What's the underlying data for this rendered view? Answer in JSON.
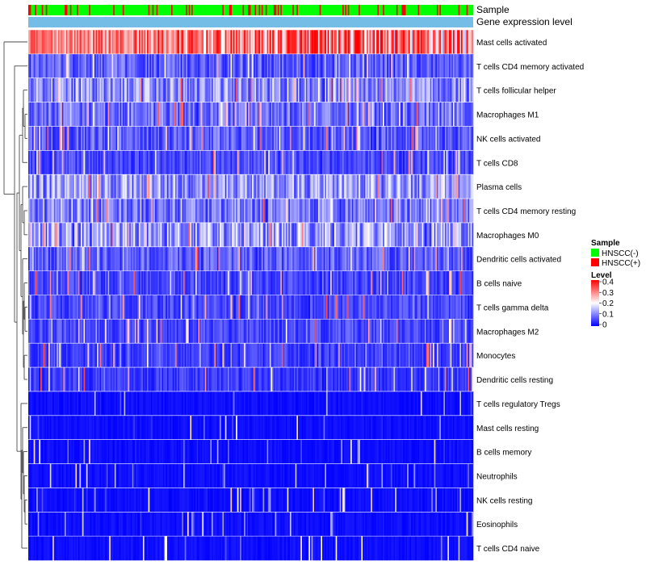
{
  "chart_data": {
    "type": "heatmap",
    "title": "",
    "annotation_rows": [
      "Sample",
      "Gene expression level"
    ],
    "row_labels": [
      "Mast cells activated",
      "T cells CD4 memory activated",
      "T cells follicular helper",
      "Macrophages M1",
      "NK cells activated",
      "T cells CD8",
      "Plasma cells",
      "T cells CD4 memory resting",
      "Macrophages M0",
      "Dendritic cells activated",
      "B cells naive",
      "T cells gamma delta",
      "Macrophages M2",
      "Monocytes",
      "Dendritic cells resting",
      "T cells regulatory  Tregs",
      "Mast cells resting",
      "B cells memory",
      "Neutrophils",
      "NK cells resting",
      "Eosinophils",
      "T cells CD4 naive"
    ],
    "row_mean_level": [
      0.3,
      0.08,
      0.12,
      0.09,
      0.08,
      0.06,
      0.13,
      0.1,
      0.14,
      0.08,
      0.06,
      0.06,
      0.06,
      0.05,
      0.05,
      0.02,
      0.02,
      0.03,
      0.02,
      0.02,
      0.02,
      0.02
    ],
    "sample_groups": [
      {
        "name": "HNSCC(-)",
        "color": "#00ff00"
      },
      {
        "name": "HNSCC(+)",
        "color": "#ff0000"
      }
    ],
    "n_samples": 330,
    "expression_level_bar_color": "#74bde6",
    "legend": {
      "sample_title": "Sample",
      "level_title": "Level",
      "level_ticks": [
        "0.4",
        "0.3",
        "0.2",
        "0.1",
        "0"
      ],
      "level_range": [
        0,
        0.4
      ],
      "color_low": "#0000ff",
      "color_mid": "#ffffff",
      "color_high": "#ff0000"
    }
  }
}
